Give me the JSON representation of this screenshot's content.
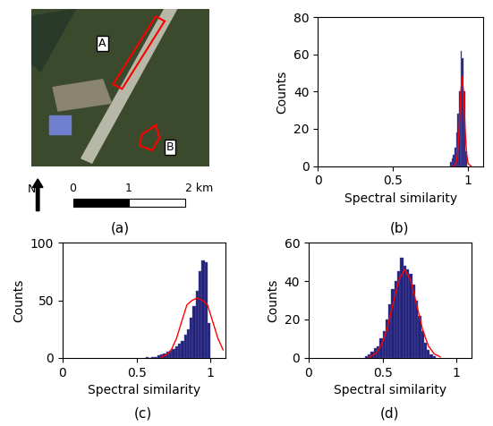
{
  "image_panel": {
    "caption": "(a)",
    "labels": [
      "A",
      "B"
    ],
    "north": "N",
    "scale_labels": [
      "0",
      "1",
      "2 km"
    ]
  },
  "chart_data": [
    {
      "type": "histogram",
      "caption": "(b)",
      "x_label": "Spectral similarity",
      "y_label": "Counts",
      "bins": [
        0.88,
        0.89,
        0.9,
        0.91,
        0.92,
        0.93,
        0.94,
        0.95,
        0.96,
        0.97,
        0.98,
        0.99
      ],
      "counts": [
        2,
        4,
        6,
        10,
        18,
        28,
        40,
        62,
        58,
        40,
        8
      ],
      "color": "#22227a",
      "fit": {
        "color": "#ff0000",
        "x": [
          0.9,
          0.92,
          0.93,
          0.94,
          0.95,
          0.96,
          0.97,
          0.98,
          0.99,
          1.0,
          1.02
        ],
        "y": [
          0.0,
          1.4,
          6.5,
          19.7,
          38.5,
          48,
          38.5,
          19.7,
          6.5,
          1.4,
          0.0
        ]
      },
      "xlim": [
        0,
        1.1
      ],
      "xticks": [
        0,
        0.5,
        1
      ],
      "ylim": [
        0,
        80
      ],
      "yticks": [
        0,
        20,
        40,
        60,
        80
      ]
    },
    {
      "type": "histogram",
      "caption": "(c)",
      "x_label": "Spectral similarity",
      "y_label": "Counts",
      "bins": [
        0.56,
        0.58,
        0.6,
        0.62,
        0.64,
        0.66,
        0.68,
        0.7,
        0.72,
        0.74,
        0.76,
        0.78,
        0.8,
        0.82,
        0.84,
        0.86,
        0.88,
        0.9,
        0.92,
        0.94,
        0.96,
        0.98,
        1.0
      ],
      "counts": [
        1,
        0,
        1,
        1,
        2,
        3,
        4,
        5,
        6,
        8,
        10,
        12,
        15,
        20,
        25,
        35,
        45,
        58,
        75,
        85,
        83,
        30
      ],
      "color": "#22227a",
      "fit": {
        "color": "#ff0000",
        "x": [
          0.665,
          0.7,
          0.735,
          0.77,
          0.805,
          0.84,
          0.875,
          0.91,
          0.945,
          0.98,
          1.015,
          1.05,
          1.085
        ],
        "y": [
          0.6,
          2.3,
          7.0,
          16.9,
          31.5,
          45.9,
          50.0,
          52,
          50.0,
          45.9,
          31.5,
          16.9,
          7.0
        ]
      },
      "xlim": [
        0,
        1.1
      ],
      "xticks": [
        0,
        0.5,
        1
      ],
      "ylim": [
        0,
        100
      ],
      "yticks": [
        0,
        50,
        100
      ]
    },
    {
      "type": "histogram",
      "caption": "(d)",
      "x_label": "Spectral similarity",
      "y_label": "Counts",
      "bins": [
        0.38,
        0.4,
        0.42,
        0.44,
        0.46,
        0.48,
        0.5,
        0.52,
        0.54,
        0.56,
        0.58,
        0.6,
        0.62,
        0.64,
        0.66,
        0.68,
        0.7,
        0.72,
        0.74,
        0.76,
        0.78,
        0.8,
        0.82,
        0.84,
        0.86
      ],
      "counts": [
        1,
        2,
        3,
        5,
        6,
        10,
        14,
        20,
        28,
        36,
        40,
        45,
        52,
        48,
        46,
        44,
        38,
        30,
        22,
        14,
        8,
        4,
        2,
        1
      ],
      "color": "#22227a",
      "fit": {
        "color": "#ff0000",
        "x": [
          0.41,
          0.45,
          0.49,
          0.53,
          0.57,
          0.61,
          0.65,
          0.69,
          0.73,
          0.77,
          0.81,
          0.85,
          0.89
        ],
        "y": [
          0.5,
          2.0,
          6.2,
          14.9,
          27.9,
          40.6,
          46,
          40.6,
          27.9,
          14.9,
          6.2,
          2.0,
          0.5
        ]
      },
      "xlim": [
        0,
        1.1
      ],
      "xticks": [
        0,
        0.5,
        1
      ],
      "ylim": [
        0,
        60
      ],
      "yticks": [
        0,
        20,
        40,
        60
      ]
    }
  ]
}
